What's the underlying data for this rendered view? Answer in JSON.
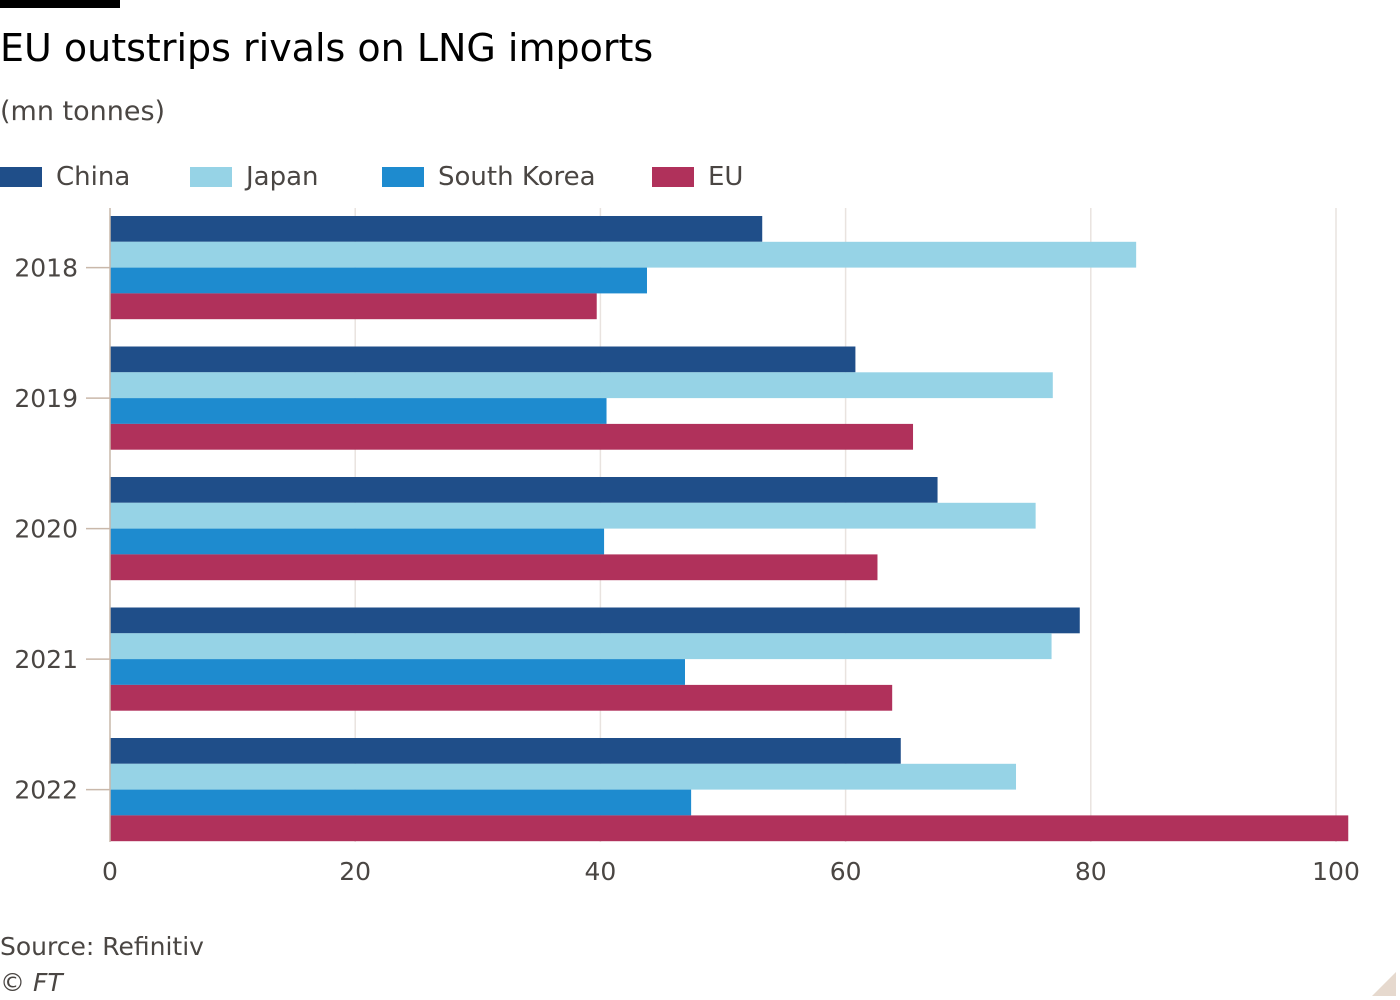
{
  "header": {
    "title": "EU outstrips rivals on LNG imports",
    "subtitle": "(mn tonnes)"
  },
  "footer": {
    "source": "Source: Refinitiv",
    "copyright": "© FT"
  },
  "colors": {
    "China": "#1f4e89",
    "Japan": "#96d3e6",
    "South Korea": "#1e8bcf",
    "EU": "#b0315b",
    "grid": "#e9e3df",
    "axis": "#c9b8aa",
    "tick_text": "#4a4643"
  },
  "chart_data": {
    "type": "bar",
    "orientation": "horizontal",
    "categories": [
      "2018",
      "2019",
      "2020",
      "2021",
      "2022"
    ],
    "series": [
      {
        "name": "China",
        "values": [
          53.2,
          60.8,
          67.5,
          79.1,
          64.5
        ]
      },
      {
        "name": "Japan",
        "values": [
          83.7,
          76.9,
          75.5,
          76.8,
          73.9
        ]
      },
      {
        "name": "South Korea",
        "values": [
          43.8,
          40.5,
          40.3,
          46.9,
          47.4
        ]
      },
      {
        "name": "EU",
        "values": [
          39.7,
          65.5,
          62.6,
          63.8,
          101.0
        ]
      }
    ],
    "xlim": [
      0,
      100
    ],
    "xticks": [
      "0",
      "20",
      "40",
      "60",
      "80",
      "100"
    ],
    "grid": true,
    "legend_position": "top"
  }
}
